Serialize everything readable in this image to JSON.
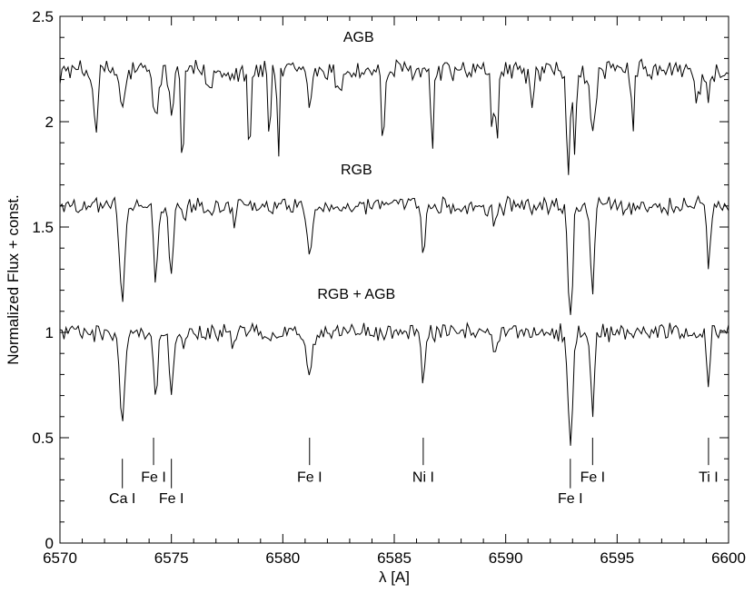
{
  "chart_data": {
    "type": "line",
    "xlabel": "λ [A]",
    "ylabel": "Normalized Flux + const.",
    "xlim": [
      6570,
      6600
    ],
    "ylim": [
      0,
      2.5
    ],
    "x_ticks": [
      "6570",
      "6575",
      "6580",
      "6585",
      "6590",
      "6595",
      "6600"
    ],
    "y_ticks": [
      "0",
      "0.5",
      "1",
      "1.5",
      "2",
      "2.5"
    ],
    "grid": false,
    "series": [
      {
        "name": "AGB",
        "label_pos": [
          6583.4,
          2.38
        ],
        "continuum": 2.24,
        "noise": 0.045,
        "lines": [
          [
            6571.6,
            0.28,
            0.09
          ],
          [
            6572.8,
            0.18,
            0.12
          ],
          [
            6574.3,
            0.22,
            0.12
          ],
          [
            6575.0,
            0.2,
            0.1
          ],
          [
            6575.5,
            0.48,
            0.06
          ],
          [
            6576.7,
            0.1,
            0.1
          ],
          [
            6578.5,
            0.45,
            0.05
          ],
          [
            6579.4,
            0.35,
            0.05
          ],
          [
            6579.8,
            0.4,
            0.05
          ],
          [
            6581.2,
            0.15,
            0.1
          ],
          [
            6582.5,
            0.12,
            0.1
          ],
          [
            6584.5,
            0.35,
            0.07
          ],
          [
            6586.7,
            0.48,
            0.05
          ],
          [
            6589.4,
            0.4,
            0.05
          ],
          [
            6589.6,
            0.5,
            0.04
          ],
          [
            6591.2,
            0.14,
            0.1
          ],
          [
            6592.8,
            0.5,
            0.08
          ],
          [
            6593.1,
            0.4,
            0.06
          ],
          [
            6593.9,
            0.32,
            0.12
          ],
          [
            6595.7,
            0.35,
            0.05
          ],
          [
            6598.6,
            0.12,
            0.12
          ],
          [
            6599.1,
            0.15,
            0.08
          ]
        ]
      },
      {
        "name": "RGB",
        "label_pos": [
          6583.3,
          1.75
        ],
        "continuum": 1.6,
        "noise": 0.035,
        "lines": [
          [
            6572.8,
            0.46,
            0.11
          ],
          [
            6574.3,
            0.38,
            0.09
          ],
          [
            6575.0,
            0.34,
            0.09
          ],
          [
            6575.6,
            0.1,
            0.07
          ],
          [
            6581.2,
            0.2,
            0.12
          ],
          [
            6586.3,
            0.26,
            0.08
          ],
          [
            6592.9,
            0.56,
            0.1
          ],
          [
            6593.9,
            0.42,
            0.08
          ],
          [
            6599.1,
            0.3,
            0.08
          ],
          [
            6577.8,
            0.06,
            0.1
          ],
          [
            6589.5,
            0.08,
            0.1
          ]
        ]
      },
      {
        "name": "RGB + AGB",
        "label_pos": [
          6583.3,
          1.16
        ],
        "continuum": 1.0,
        "noise": 0.035,
        "lines": [
          [
            6572.8,
            0.46,
            0.11
          ],
          [
            6574.3,
            0.34,
            0.08
          ],
          [
            6575.0,
            0.3,
            0.09
          ],
          [
            6575.6,
            0.08,
            0.07
          ],
          [
            6581.2,
            0.19,
            0.12
          ],
          [
            6586.3,
            0.27,
            0.07
          ],
          [
            6592.9,
            0.54,
            0.1
          ],
          [
            6593.9,
            0.4,
            0.08
          ],
          [
            6599.1,
            0.26,
            0.07
          ],
          [
            6577.8,
            0.08,
            0.1
          ],
          [
            6589.5,
            0.06,
            0.1
          ]
        ]
      }
    ],
    "line_ids": [
      {
        "label": "Ca I",
        "x": 6572.8,
        "tick_top": 0.4,
        "tick_bottom": 0.26,
        "label_y": 0.19
      },
      {
        "label": "Fe I",
        "x": 6574.2,
        "tick_top": 0.5,
        "tick_bottom": 0.37,
        "label_y": 0.29
      },
      {
        "label": "Fe I",
        "x": 6575.0,
        "tick_top": 0.4,
        "tick_bottom": 0.26,
        "label_y": 0.19
      },
      {
        "label": "Fe I",
        "x": 6581.2,
        "tick_top": 0.5,
        "tick_bottom": 0.37,
        "label_y": 0.29
      },
      {
        "label": "Ni I",
        "x": 6586.3,
        "tick_top": 0.5,
        "tick_bottom": 0.37,
        "label_y": 0.29
      },
      {
        "label": "Fe I",
        "x": 6592.9,
        "tick_top": 0.4,
        "tick_bottom": 0.26,
        "label_y": 0.19
      },
      {
        "label": "Fe I",
        "x": 6593.9,
        "tick_top": 0.5,
        "tick_bottom": 0.37,
        "label_y": 0.29
      },
      {
        "label": "Ti I",
        "x": 6599.1,
        "tick_top": 0.5,
        "tick_bottom": 0.37,
        "label_y": 0.29
      }
    ]
  }
}
